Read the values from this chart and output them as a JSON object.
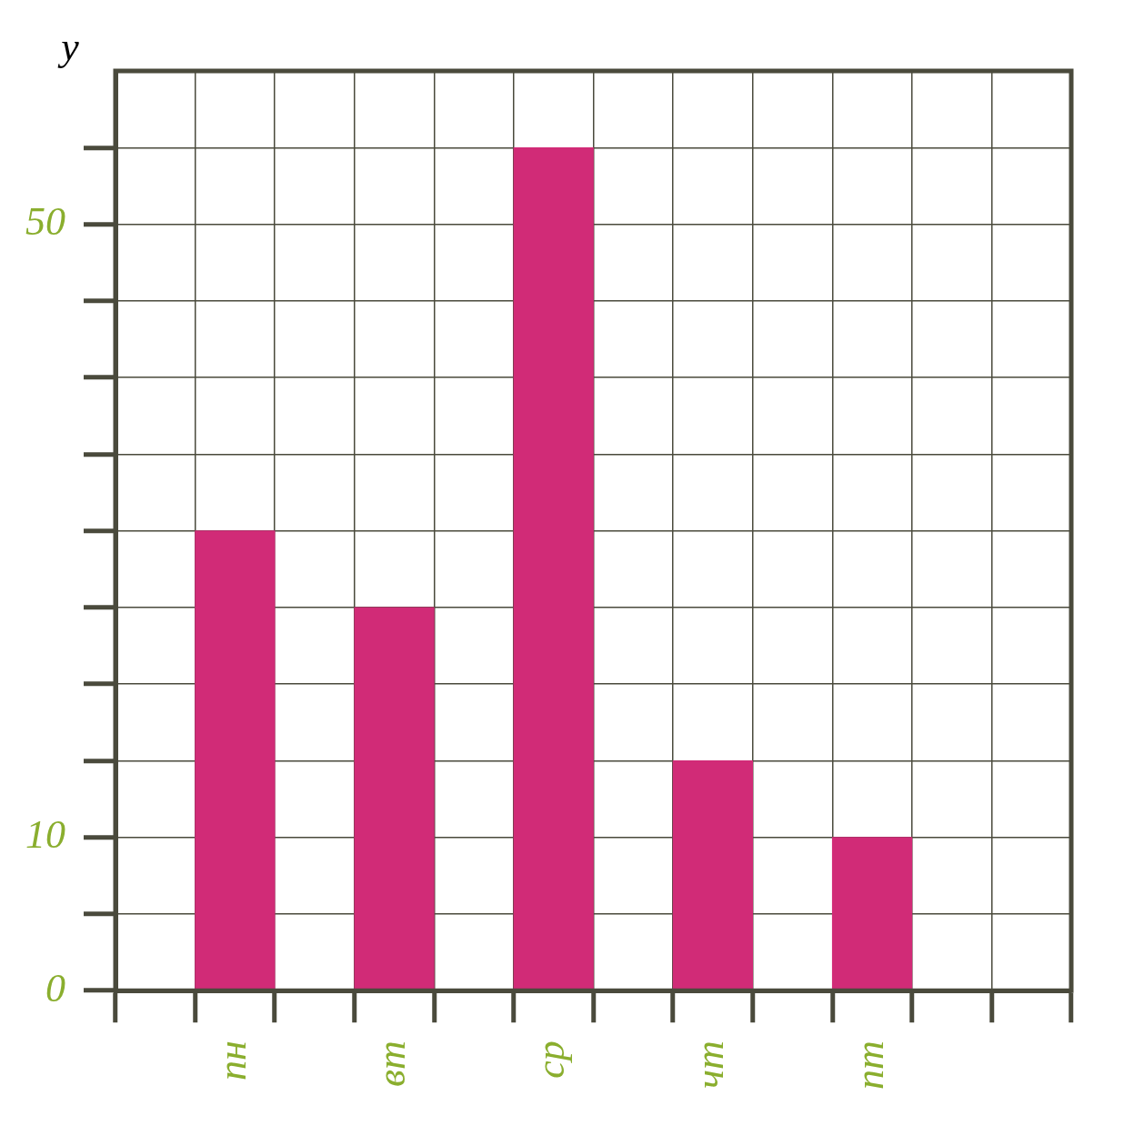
{
  "chart_data": {
    "type": "bar",
    "ylabel": "y",
    "categories": [
      null,
      "пн",
      null,
      "вт",
      null,
      "ср",
      null,
      "чт",
      null,
      "пт",
      null,
      null
    ],
    "values": [
      null,
      30,
      null,
      25,
      null,
      55,
      null,
      15,
      null,
      10,
      null,
      null
    ],
    "color": "#d12b77",
    "ylim": [
      0,
      60
    ],
    "yticks": [
      {
        "value": 0,
        "label": "0"
      },
      {
        "value": 5,
        "label": null
      },
      10,
      {
        "value": 15,
        "label": null
      },
      {
        "value": 20,
        "label": null
      },
      {
        "value": 25,
        "label": null
      },
      {
        "value": 30,
        "label": null
      },
      {
        "value": 35,
        "label": null
      },
      {
        "value": 40,
        "label": null
      },
      {
        "value": 45,
        "label": null
      },
      50,
      {
        "value": 55,
        "label": null
      }
    ],
    "grid": true
  }
}
